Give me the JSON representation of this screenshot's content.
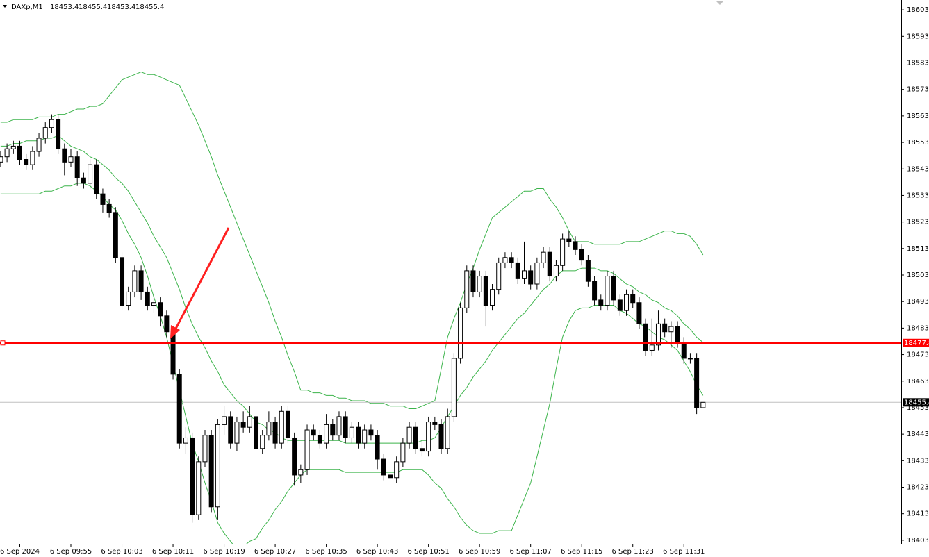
{
  "chart_data": {
    "type": "candlestick",
    "title": "DAXp,M1",
    "categories": [
      null,
      null,
      null,
      "6 Sep 2024",
      null,
      null,
      null,
      null,
      null,
      null,
      null,
      "6 Sep 09:55",
      null,
      null,
      null,
      null,
      null,
      null,
      null,
      "6 Sep 10:03",
      null,
      null,
      null,
      null,
      null,
      null,
      null,
      "6 Sep 10:11",
      null,
      null,
      null,
      null,
      null,
      null,
      null,
      "6 Sep 10:19",
      null,
      null,
      null,
      null,
      null,
      null,
      null,
      "6 Sep 10:27",
      null,
      null,
      null,
      null,
      null,
      null,
      null,
      "6 Sep 10:35",
      null,
      null,
      null,
      null,
      null,
      null,
      null,
      "6 Sep 10:43",
      null,
      null,
      null,
      null,
      null,
      null,
      null,
      "6 Sep 10:51",
      null,
      null,
      null,
      null,
      null,
      null,
      null,
      "6 Sep 10:59",
      null,
      null,
      null,
      null,
      null,
      null,
      null,
      "6 Sep 11:07",
      null,
      null,
      null,
      null,
      null,
      null,
      null,
      "6 Sep 11:15",
      null,
      null,
      null,
      null,
      null,
      null,
      null,
      "6 Sep 11:23",
      null,
      null,
      null,
      null,
      null,
      null,
      null,
      "6 Sep 11:31",
      null,
      null,
      null
    ],
    "open": [
      18546,
      18548,
      18551,
      18552,
      18547,
      18545,
      18550,
      18555,
      18559,
      18562,
      18551,
      18546,
      18548,
      18540,
      18538,
      18545,
      18534,
      18530,
      18527,
      18510,
      18492,
      18497,
      18505,
      18497,
      18492,
      18493,
      18488,
      18482,
      18466,
      18440,
      18442,
      18413,
      18433,
      18443,
      18416,
      18447,
      18450,
      18440,
      18448,
      18446,
      18450,
      18438,
      18443,
      18448,
      18440,
      18452,
      18442,
      18428,
      18430,
      18445,
      18443,
      18440,
      18447,
      18443,
      18450,
      18442,
      18446,
      18440,
      18445,
      18443,
      18434,
      18428,
      18427,
      18433,
      18440,
      18446,
      18438,
      18437,
      18448,
      18447,
      18438,
      18450,
      18472,
      18491,
      18505,
      18497,
      18503,
      18492,
      18498,
      18508,
      18510,
      18508,
      18502,
      18505,
      18500,
      18508,
      18512,
      18503,
      18507,
      18517,
      18516,
      18513,
      18509,
      18501,
      18494,
      18492,
      18503,
      18494,
      18490,
      18496,
      18493,
      18485,
      18475,
      18477,
      18485,
      18482,
      18484,
      18478,
      18472,
      18472,
      18453.4
    ],
    "high": [
      18550,
      18553,
      18554,
      18554,
      18549,
      18552,
      18557,
      18561,
      18564,
      18564,
      18553,
      18551,
      18550,
      18542,
      18547,
      18547,
      18536,
      18532,
      18529,
      18512,
      18499,
      18507,
      18507,
      18499,
      18497,
      18495,
      18490,
      18484,
      18468,
      18446,
      18444,
      18435,
      18445,
      18445,
      18449,
      18454,
      18452,
      18450,
      18452,
      18454,
      18452,
      18445,
      18452,
      18450,
      18454,
      18454,
      18444,
      18432,
      18447,
      18447,
      18445,
      18451,
      18449,
      18452,
      18452,
      18448,
      18448,
      18447,
      18447,
      18445,
      18436,
      18431,
      18435,
      18442,
      18448,
      18448,
      18441,
      18450,
      18450,
      18449,
      18453,
      18474,
      18493,
      18507,
      18507,
      18505,
      18505,
      18500,
      18510,
      18512,
      18512,
      18510,
      18516,
      18507,
      18510,
      18514,
      18514,
      18509,
      18519,
      18520,
      18518,
      18515,
      18511,
      18503,
      18496,
      18505,
      18505,
      18496,
      18498,
      18498,
      18495,
      18487,
      18487,
      18490,
      18487,
      18486,
      18486,
      18480,
      18474,
      18474,
      18455.4
    ],
    "low": [
      18544,
      18546,
      18549,
      18545,
      18543,
      18543,
      18548,
      18553,
      18557,
      18549,
      18541,
      18544,
      18537,
      18536,
      18536,
      18532,
      18527,
      18525,
      18508,
      18490,
      18490,
      18495,
      18494,
      18490,
      18489,
      18484,
      18480,
      18464,
      18438,
      18436,
      18410,
      18411,
      18431,
      18414,
      18411,
      18443,
      18438,
      18437,
      18444,
      18444,
      18436,
      18436,
      18441,
      18438,
      18438,
      18440,
      18424,
      18425,
      18428,
      18441,
      18438,
      18438,
      18441,
      18441,
      18440,
      18440,
      18438,
      18438,
      18441,
      18430,
      18426,
      18425,
      18425,
      18431,
      18438,
      18436,
      18435,
      18435,
      18445,
      18436,
      18436,
      18448,
      18470,
      18489,
      18495,
      18495,
      18484,
      18490,
      18496,
      18506,
      18506,
      18500,
      18500,
      18498,
      18498,
      18506,
      18501,
      18501,
      18505,
      18514,
      18511,
      18507,
      18499,
      18492,
      18490,
      18490,
      18492,
      18488,
      18488,
      18491,
      18483,
      18473,
      18473,
      18475,
      18480,
      18476,
      18476,
      18470,
      18470,
      18451,
      18453.4
    ],
    "close": [
      18548,
      18551,
      18552,
      18547,
      18545,
      18550,
      18555,
      18559,
      18562,
      18551,
      18546,
      18548,
      18540,
      18538,
      18545,
      18534,
      18530,
      18527,
      18510,
      18492,
      18497,
      18505,
      18497,
      18492,
      18493,
      18488,
      18482,
      18466,
      18440,
      18442,
      18413,
      18433,
      18443,
      18416,
      18447,
      18450,
      18440,
      18448,
      18446,
      18450,
      18438,
      18443,
      18448,
      18440,
      18452,
      18442,
      18428,
      18430,
      18445,
      18443,
      18440,
      18447,
      18443,
      18450,
      18442,
      18446,
      18440,
      18445,
      18443,
      18434,
      18428,
      18427,
      18433,
      18440,
      18446,
      18438,
      18437,
      18448,
      18447,
      18438,
      18450,
      18472,
      18491,
      18505,
      18497,
      18503,
      18492,
      18498,
      18508,
      18510,
      18508,
      18502,
      18505,
      18500,
      18508,
      18512,
      18503,
      18507,
      18517,
      18516,
      18513,
      18509,
      18501,
      18494,
      18492,
      18503,
      18494,
      18490,
      18496,
      18493,
      18485,
      18475,
      18477,
      18485,
      18482,
      18484,
      18478,
      18472,
      18472,
      18453.4,
      18455.4
    ],
    "up_color": "#ffffff",
    "down_color": "#000000",
    "band_color": "#3cb44b",
    "upper_band": [
      18561,
      18561,
      18562,
      18562,
      18562,
      18562,
      18563,
      18563,
      18563,
      18564,
      18564,
      18565,
      18566,
      18566,
      18567,
      18567,
      18568,
      18571,
      18574,
      18577,
      18578,
      18579,
      18580,
      18579,
      18579,
      18578,
      18577,
      18576,
      18575,
      18570,
      18565,
      18560,
      18554,
      18548,
      18541,
      18535,
      18529,
      18523,
      18517,
      18511,
      18505,
      18499,
      18493,
      18486,
      18480,
      18473,
      18467,
      18460,
      18460,
      18459,
      18459,
      18458,
      18458,
      18457,
      18457,
      18456,
      18456,
      18456,
      18455,
      18455,
      18455,
      18454,
      18454,
      18454,
      18453,
      18453,
      18454,
      18455,
      18456,
      18468,
      18480,
      18487,
      18493,
      18500,
      18506,
      18513,
      18519,
      18525,
      18527,
      18529,
      18531,
      18533,
      18535,
      18535,
      18536,
      18536,
      18532,
      18529,
      18525,
      18520,
      18516,
      18516,
      18516,
      18515,
      18515,
      18515,
      18515,
      18515,
      18516,
      18516,
      18516,
      18517,
      18518,
      18519,
      18520,
      18520,
      18519,
      18519,
      18518,
      18515,
      18511
    ],
    "middle_band": [
      18552,
      18552,
      18553,
      18553,
      18554,
      18554,
      18554,
      18555,
      18555,
      18556,
      18554,
      18552,
      18551,
      18550,
      18548,
      18547,
      18545,
      18543,
      18540,
      18538,
      18535,
      18531,
      18527,
      18523,
      18518,
      18514,
      18510,
      18504,
      18498,
      18491,
      18485,
      18480,
      18476,
      18471,
      18467,
      18462,
      18459,
      18456,
      18454,
      18451,
      18448,
      18447,
      18445,
      18444,
      18442,
      18441,
      18441,
      18441,
      18441,
      18441,
      18441,
      18441,
      18441,
      18441,
      18440,
      18440,
      18440,
      18440,
      18440,
      18440,
      18440,
      18440,
      18440,
      18440,
      18440,
      18440,
      18441,
      18441,
      18442,
      18446,
      18450,
      18454,
      18458,
      18461,
      18465,
      18468,
      18471,
      18475,
      18478,
      18481,
      18484,
      18487,
      18489,
      18492,
      18495,
      18498,
      18500,
      18503,
      18505,
      18505,
      18505,
      18506,
      18506,
      18506,
      18505,
      18505,
      18504,
      18502,
      18500,
      18499,
      18497,
      18496,
      18494,
      18493,
      18491,
      18490,
      18488,
      18485,
      18483,
      18480,
      18478
    ],
    "lower_band": [
      18534,
      18534,
      18534,
      18534,
      18534,
      18534,
      18534,
      18535,
      18535,
      18536,
      18537,
      18537,
      18538,
      18538,
      18537,
      18535,
      18533,
      18530,
      18528,
      18524,
      18519,
      18515,
      18510,
      18503,
      18495,
      18488,
      18480,
      18470,
      18460,
      18450,
      18440,
      18433,
      18425,
      18418,
      18410,
      18406,
      18403,
      18400,
      18401,
      18403,
      18404,
      18408,
      18411,
      18415,
      18418,
      18422,
      18425,
      18428,
      18430,
      18430,
      18430,
      18430,
      18430,
      18430,
      18429,
      18429,
      18429,
      18429,
      18429,
      18429,
      18429,
      18429,
      18429,
      18430,
      18430,
      18430,
      18430,
      18428,
      18425,
      18423,
      18419,
      18416,
      18412,
      18409,
      18407,
      18406,
      18406,
      18406,
      18407,
      18407,
      18407,
      18413,
      18419,
      18425,
      18435,
      18445,
      18455,
      18468,
      18480,
      18486,
      18490,
      18491,
      18491,
      18492,
      18492,
      18492,
      18492,
      18490,
      18489,
      18487,
      18485,
      18484,
      18482,
      18480,
      18479,
      18477,
      18475,
      18471,
      18467,
      18462,
      18458
    ],
    "ylim": [
      18401.8,
      18607.1
    ],
    "yticks": [
      18403.4,
      18413.4,
      18423.4,
      18433.4,
      18443.4,
      18453.4,
      18463.4,
      18473.4,
      18483.4,
      18493.4,
      18503.4,
      18513.4,
      18523.4,
      18533.4,
      18543.4,
      18553.4,
      18563.4,
      18573.4,
      18583.4,
      18593.4,
      18603.4
    ],
    "hline": {
      "value": 18477.8,
      "color": "#ff0000"
    },
    "bid": 18455.4
  }
}
